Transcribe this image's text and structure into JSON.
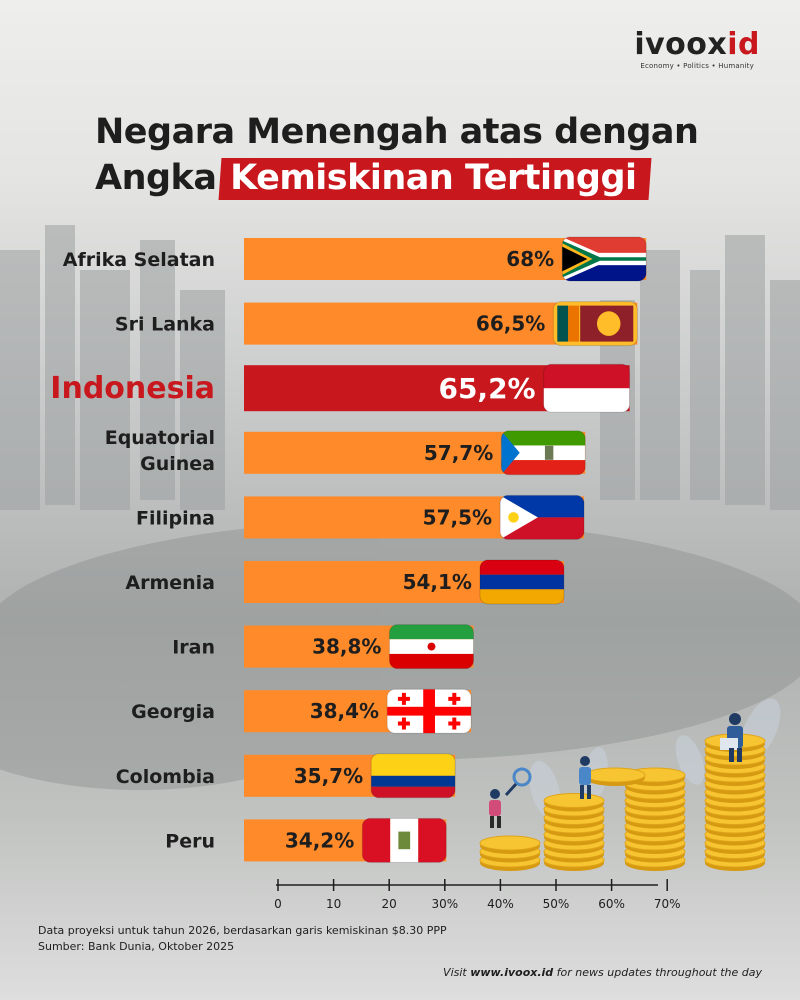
{
  "logo": {
    "part1": "ivoox",
    "part2": "id",
    "tagline": "Economy • Politics • Humanity"
  },
  "title": {
    "line1": "Negara Menengah atas dengan",
    "line2_plain": "Angka",
    "line2_highlight": "Kemiskinan Tertinggi"
  },
  "colors": {
    "bar": "#ff8a2a",
    "bar_highlight": "#c8181e",
    "title_highlight": "#c8181e"
  },
  "chart_data": {
    "type": "bar",
    "orientation": "horizontal",
    "categories": [
      "Afrika Selatan",
      "Sri Lanka",
      "Indonesia",
      "Equatorial Guinea",
      "Filipina",
      "Armenia",
      "Iran",
      "Georgia",
      "Colombia",
      "Peru"
    ],
    "values": [
      68,
      66.5,
      65.2,
      57.7,
      57.5,
      54.1,
      38.8,
      38.4,
      35.7,
      34.2
    ],
    "value_labels": [
      "68%",
      "66,5%",
      "65,2%",
      "57,7%",
      "57,5%",
      "54,1%",
      "38,8%",
      "38,4%",
      "35,7%",
      "34,2%"
    ],
    "highlight": "Indonesia",
    "flags": [
      "south-africa-flag",
      "sri-lanka-flag",
      "indonesia-flag",
      "equatorial-guinea-flag",
      "philippines-flag",
      "armenia-flag",
      "iran-flag",
      "georgia-flag",
      "colombia-flag",
      "peru-flag"
    ],
    "xlim": [
      0,
      70
    ],
    "xticks": [
      "0",
      "10",
      "20",
      "30%",
      "40%",
      "50%",
      "60%",
      "70%"
    ],
    "grid": false
  },
  "notes": {
    "line1": "Data proyeksi untuk tahun 2026, berdasarkan garis kemiskinan $8.30 PPP",
    "line2": "Sumber: Bank Dunia, Oktober 2025"
  },
  "footer": {
    "prefix": "Visit",
    "site": "www.ivoox.id",
    "suffix": "for news updates throughout the day"
  }
}
